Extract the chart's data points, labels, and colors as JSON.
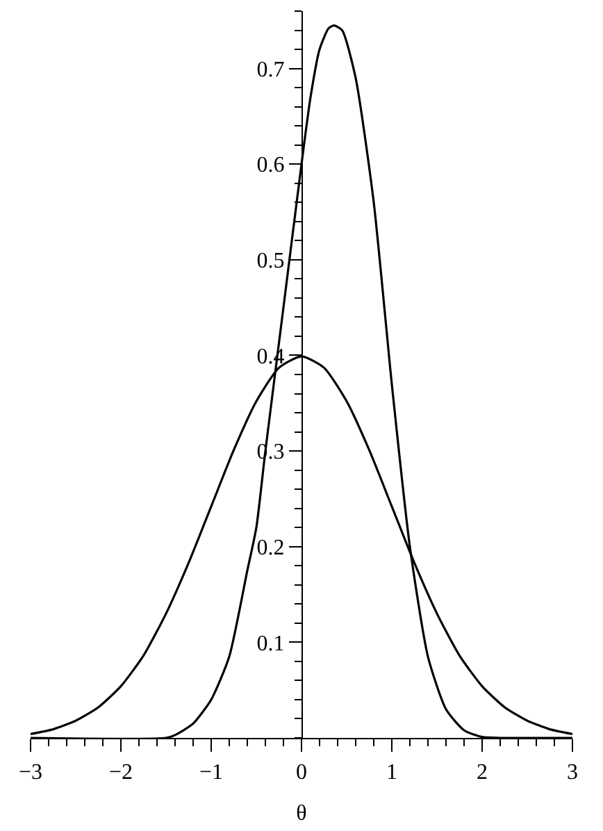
{
  "chart_data": {
    "type": "line",
    "xlabel": "θ",
    "xlim": [
      -3,
      3
    ],
    "ylim": [
      0,
      0.76
    ],
    "xticks": [
      {
        "value": -3,
        "label": "−3"
      },
      {
        "value": -2,
        "label": "−2"
      },
      {
        "value": -1,
        "label": "−1"
      },
      0,
      1,
      2,
      3
    ],
    "yticks": [
      0.1,
      0.2,
      0.3,
      0.4,
      0.5,
      0.6,
      0.7
    ],
    "marker": "none",
    "line_style": "solid",
    "series": [
      {
        "color": "#000000",
        "x": [
          -3,
          -2.75,
          -2.5,
          -2.25,
          -2,
          -1.75,
          -1.5,
          -1.25,
          -1,
          -0.75,
          -0.5,
          -0.25,
          0,
          0.25,
          0.5,
          0.75,
          1,
          1.25,
          1.5,
          1.75,
          2,
          2.25,
          2.5,
          2.75,
          3
        ],
        "values": [
          0.004,
          0.009,
          0.018,
          0.032,
          0.054,
          0.086,
          0.13,
          0.183,
          0.242,
          0.301,
          0.352,
          0.387,
          0.399,
          0.387,
          0.352,
          0.301,
          0.242,
          0.183,
          0.13,
          0.086,
          0.054,
          0.032,
          0.018,
          0.009,
          0.004
        ]
      },
      {
        "color": "#000000",
        "x": [
          -3,
          -1.5,
          -1.4,
          -1.2,
          -1.0,
          -0.8,
          -0.6,
          -0.5,
          -0.4,
          -0.2,
          0,
          0.1,
          0.2,
          0.3,
          0.36,
          0.45,
          0.6,
          0.8,
          1.0,
          1.2,
          1.4,
          1.6,
          1.8,
          2.0,
          2.2,
          3
        ],
        "values": [
          0,
          0,
          0.003,
          0.015,
          0.04,
          0.085,
          0.175,
          0.22,
          0.3,
          0.45,
          0.6,
          0.67,
          0.72,
          0.742,
          0.745,
          0.74,
          0.69,
          0.56,
          0.37,
          0.2,
          0.085,
          0.03,
          0.008,
          0.001,
          0,
          0
        ]
      }
    ]
  }
}
